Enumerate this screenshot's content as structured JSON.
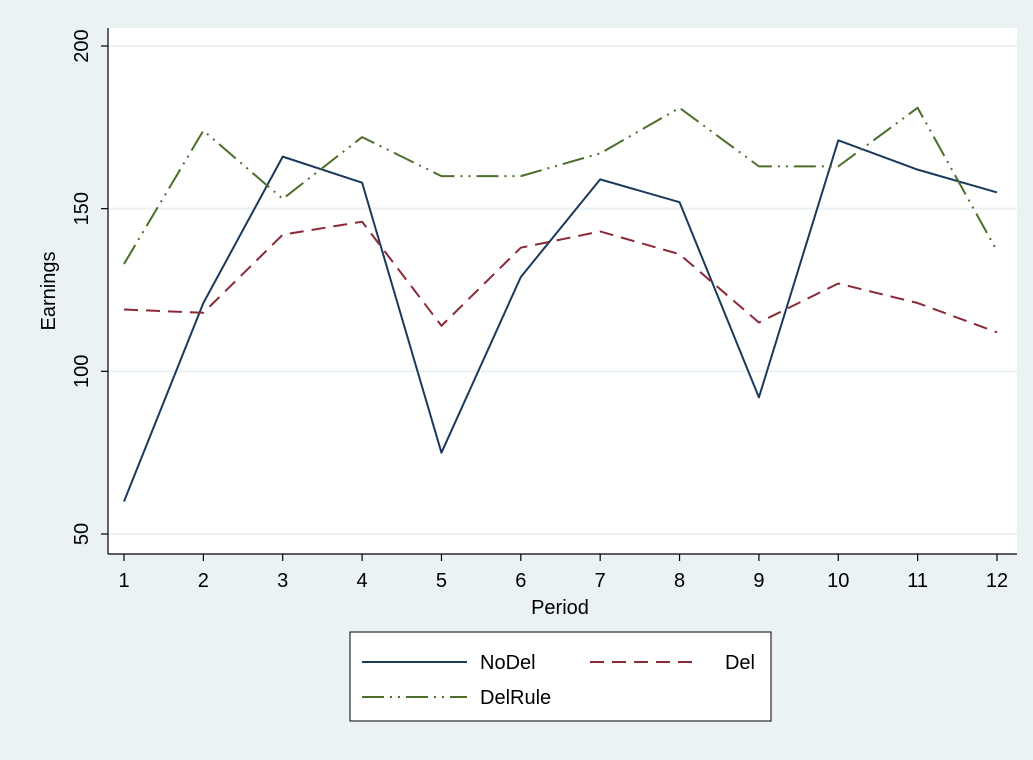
{
  "chart_data": {
    "type": "line",
    "title": "",
    "xlabel": "Period",
    "ylabel": "Earnings",
    "x": [
      1,
      2,
      3,
      4,
      5,
      6,
      7,
      8,
      9,
      10,
      11,
      12
    ],
    "xticks": [
      "1",
      "2",
      "3",
      "4",
      "5",
      "6",
      "7",
      "8",
      "9",
      "10",
      "11",
      "12"
    ],
    "yticks": [
      "50",
      "100",
      "150",
      "200"
    ],
    "ylim": [
      50,
      200
    ],
    "xlim": [
      1,
      12
    ],
    "grid": "horizontal",
    "legend_placement": "bottom",
    "series": [
      {
        "name": "NoDel",
        "color": "#1a3a5c",
        "dash": "solid",
        "values": [
          60,
          121,
          166,
          158,
          75,
          129,
          159,
          152,
          92,
          171,
          162,
          155
        ]
      },
      {
        "name": "Del",
        "color": "#8b2a36",
        "dash": "dash",
        "values": [
          119,
          118,
          142,
          146,
          114,
          138,
          143,
          136,
          115,
          127,
          121,
          112
        ]
      },
      {
        "name": "DelRule",
        "color": "#4d6e2a",
        "dash": "longdash-dot",
        "values": [
          133,
          174,
          153,
          172,
          160,
          160,
          167,
          181,
          163,
          163,
          181,
          137
        ]
      }
    ]
  }
}
